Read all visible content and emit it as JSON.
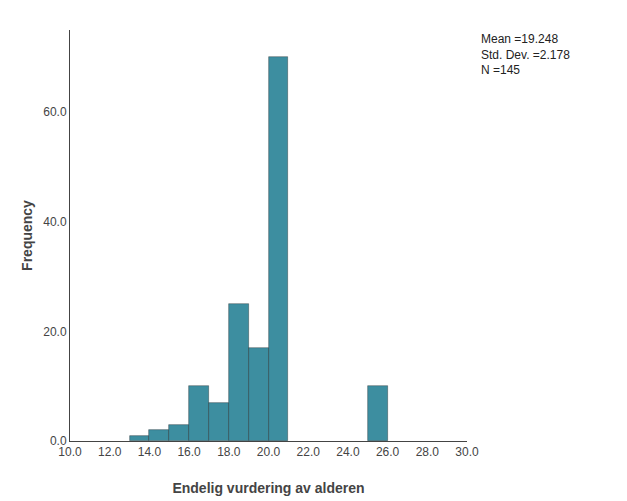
{
  "chart_data": {
    "type": "bar",
    "x": [
      13.5,
      14.5,
      15.5,
      16.5,
      17.5,
      18.5,
      19.5,
      20.5,
      25.5
    ],
    "values": [
      1,
      2,
      3,
      10,
      7,
      25,
      17,
      70,
      10
    ],
    "color": "#3d8ea0",
    "xlabel": "Endelig vurdering av alderen",
    "ylabel": "Frequency",
    "xlim": [
      10.0,
      30.0
    ],
    "ylim": [
      0,
      75
    ],
    "xticks": [
      {
        "value": 10,
        "label": "10.0"
      },
      {
        "value": 12,
        "label": "12.0"
      },
      {
        "value": 14,
        "label": "14.0"
      },
      {
        "value": 16,
        "label": "16.0"
      },
      {
        "value": 18,
        "label": "18.0"
      },
      {
        "value": 20,
        "label": "20.0"
      },
      {
        "value": 22,
        "label": "22.0"
      },
      {
        "value": 24,
        "label": "24.0"
      },
      {
        "value": 26,
        "label": "26.0"
      },
      {
        "value": 28,
        "label": "28.0"
      },
      {
        "value": 30,
        "label": "30.0"
      }
    ],
    "yticks": [
      {
        "value": 0,
        "label": "0.0"
      },
      {
        "value": 20,
        "label": "20.0"
      },
      {
        "value": 40,
        "label": "40.0"
      },
      {
        "value": 60,
        "label": "60.0"
      }
    ],
    "annotations": [
      "Mean =19.248",
      "Std. Dev. =2.178",
      "N =145"
    ],
    "grid": false
  }
}
